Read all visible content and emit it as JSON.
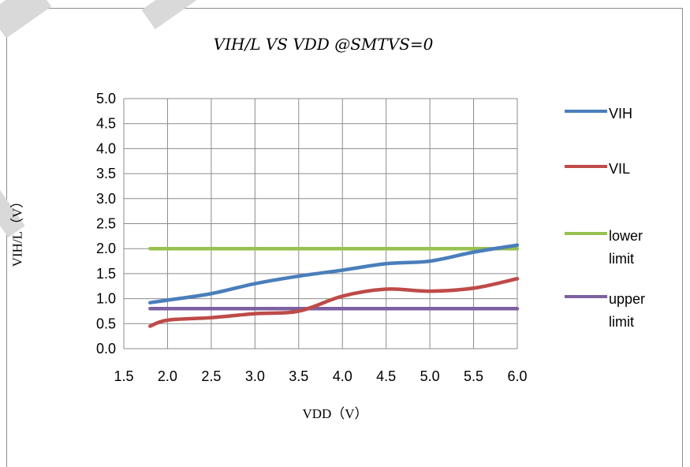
{
  "chart_data": {
    "type": "line",
    "title": "VIH/L VS VDD @SMTVS=0",
    "xlabel": "VDD（V）",
    "ylabel": "VIH/L（V）",
    "xlim": [
      1.5,
      6.0
    ],
    "ylim": [
      0.0,
      5.0
    ],
    "x_ticks": [
      "1.5",
      "2.0",
      "2.5",
      "3.0",
      "3.5",
      "4.0",
      "4.5",
      "5.0",
      "5.5",
      "6.0"
    ],
    "y_ticks": [
      "0.0",
      "0.5",
      "1.0",
      "1.5",
      "2.0",
      "2.5",
      "3.0",
      "3.5",
      "4.0",
      "4.5",
      "5.0"
    ],
    "grid": true,
    "legend_position": "right",
    "series": [
      {
        "name": "VIH",
        "color": "#4a7ebb",
        "x": [
          1.8,
          2.0,
          2.5,
          3.0,
          3.5,
          4.0,
          4.5,
          5.0,
          5.5,
          6.0
        ],
        "y": [
          0.92,
          0.97,
          1.1,
          1.3,
          1.45,
          1.57,
          1.7,
          1.75,
          1.93,
          2.07
        ]
      },
      {
        "name": "VIL",
        "color": "#be4b48",
        "x": [
          1.8,
          2.0,
          2.5,
          3.0,
          3.5,
          4.0,
          4.5,
          5.0,
          5.5,
          6.0
        ],
        "y": [
          0.45,
          0.57,
          0.62,
          0.7,
          0.75,
          1.05,
          1.19,
          1.15,
          1.21,
          1.4
        ]
      },
      {
        "name": "lower limit",
        "color": "#98c14f",
        "x": [
          1.8,
          6.0
        ],
        "y": [
          2.0,
          2.0
        ]
      },
      {
        "name": "upper limit",
        "color": "#7d60a0",
        "x": [
          1.8,
          6.0
        ],
        "y": [
          0.8,
          0.8
        ]
      }
    ]
  },
  "legend": {
    "items": [
      {
        "label_lines": [
          "VIH"
        ]
      },
      {
        "label_lines": [
          "VIL"
        ]
      },
      {
        "label_lines": [
          "lower",
          "limit"
        ]
      },
      {
        "label_lines": [
          "upper",
          "limit"
        ]
      }
    ]
  }
}
